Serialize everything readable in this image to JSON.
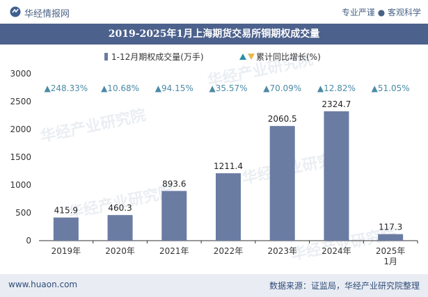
{
  "header": {
    "brand": "华经情报网",
    "tagline": "专业严谨 ● 客观科学"
  },
  "title": "2019-2025年1月上海期货交易所铜期权成交量",
  "footer": {
    "website": "www.huaon.com",
    "source": "数据来源：证监局，华经产业研究院整理"
  },
  "watermark": "华经产业研究院",
  "colors": {
    "bar": "#6b7ca3",
    "growth": "#4b8aa6",
    "up_marker": "#2b8fa6",
    "down_marker": "#e8b84a"
  },
  "chart_data": {
    "type": "bar",
    "categories": [
      "2019年",
      "2020年",
      "2021年",
      "2022年",
      "2023年",
      "2024年",
      "2025年\n1月"
    ],
    "series": [
      {
        "name": "1-12月期权成交量(万手)",
        "values": [
          415.9,
          460.3,
          893.6,
          1211.4,
          2060.5,
          2324.7,
          117.3
        ],
        "value_labels": [
          "415.9",
          "460.3",
          "893.6",
          "1211.4",
          "2060.5",
          "2324.7",
          "117.3"
        ]
      },
      {
        "name": "累计同比增长(%)",
        "values": [
          248.33,
          10.68,
          94.15,
          35.57,
          70.09,
          12.82,
          51.05
        ],
        "labels": [
          "▲248.33%",
          "▲10.68%",
          "▲94.15%",
          "▲35.57%",
          "▲70.09%",
          "▲12.82%",
          "▲51.05%"
        ]
      }
    ],
    "ylim": [
      0,
      3000
    ],
    "yticks": [
      "0",
      "500",
      "1000",
      "1500",
      "2000",
      "2500",
      "3000"
    ],
    "legend_position": "top",
    "grid": false
  }
}
